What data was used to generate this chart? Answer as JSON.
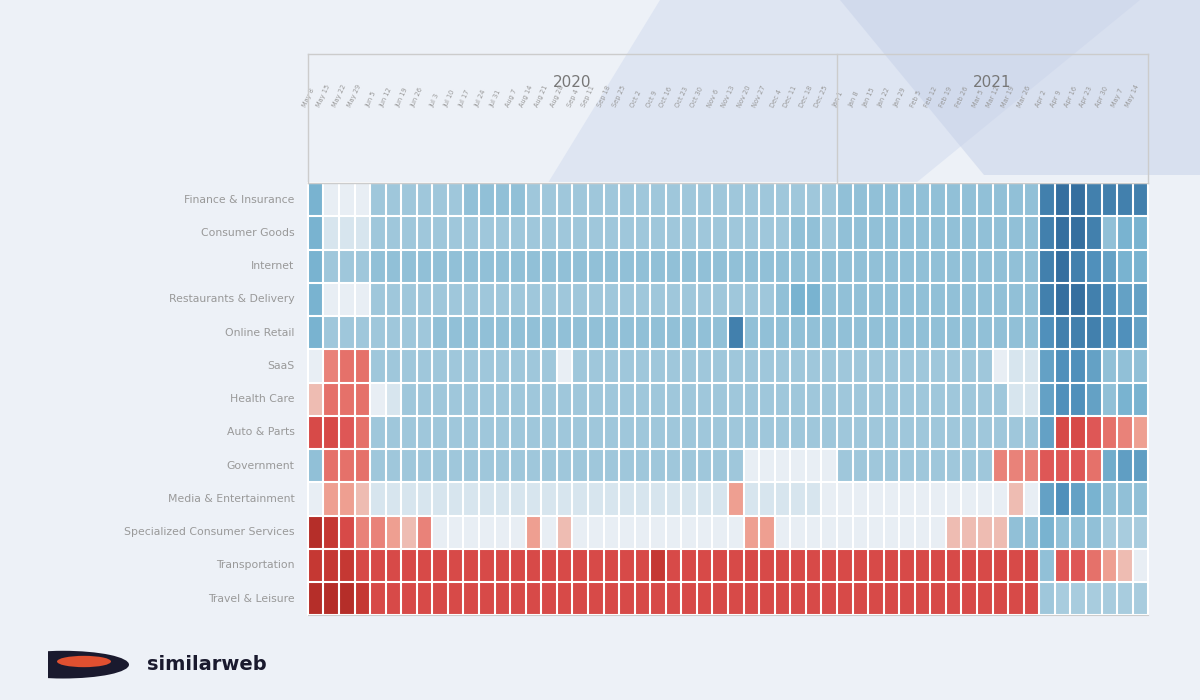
{
  "sectors": [
    "Finance & Insurance",
    "Consumer Goods",
    "Internet",
    "Restaurants & Delivery",
    "Online Retail",
    "SaaS",
    "Health Care",
    "Auto & Parts",
    "Government",
    "Media & Entertainment",
    "Specialized Consumer Services",
    "Transportation",
    "Travel & Leisure"
  ],
  "col_labels": [
    "May 8",
    "May 15",
    "May 22",
    "May 29",
    "Jun 5",
    "Jun 12",
    "Jun 19",
    "Jun 26",
    "Jul 3",
    "Jul 10",
    "Jul 17",
    "Jul 24",
    "Jul 31",
    "Aug 7",
    "Aug 14",
    "Aug 21",
    "Aug 28",
    "Sep 4",
    "Sep 11",
    "Sep 18",
    "Sep 25",
    "Oct 2",
    "Oct 9",
    "Oct 16",
    "Oct 23",
    "Oct 30",
    "Nov 6",
    "Nov 13",
    "Nov 20",
    "Nov 27",
    "Dec 4",
    "Dec 11",
    "Dec 18",
    "Dec 25",
    "Jan 1",
    "Jan 8",
    "Jan 15",
    "Jan 22",
    "Jan 29",
    "Feb 5",
    "Feb 12",
    "Feb 19",
    "Feb 26",
    "Mar 5",
    "Mar 12",
    "Mar 19",
    "Mar 26",
    "Apr 2",
    "Apr 9",
    "Apr 16",
    "Apr 23",
    "Apr 30",
    "May 7",
    "May 14"
  ],
  "year_labels": [
    "2020",
    "2021"
  ],
  "divider_col": 34,
  "heatmap_data": [
    [
      0.7,
      0.5,
      0.5,
      0.52,
      0.62,
      0.62,
      0.62,
      0.62,
      0.62,
      0.62,
      0.65,
      0.65,
      0.65,
      0.65,
      0.62,
      0.62,
      0.62,
      0.62,
      0.62,
      0.62,
      0.62,
      0.62,
      0.62,
      0.62,
      0.62,
      0.62,
      0.62,
      0.62,
      0.62,
      0.62,
      0.62,
      0.62,
      0.62,
      0.62,
      0.65,
      0.65,
      0.65,
      0.65,
      0.65,
      0.65,
      0.65,
      0.65,
      0.65,
      0.65,
      0.65,
      0.65,
      0.65,
      0.85,
      0.9,
      0.9,
      0.85,
      0.85,
      0.85,
      0.85
    ],
    [
      0.7,
      0.55,
      0.55,
      0.55,
      0.62,
      0.62,
      0.62,
      0.62,
      0.62,
      0.62,
      0.62,
      0.62,
      0.62,
      0.62,
      0.62,
      0.62,
      0.62,
      0.62,
      0.62,
      0.62,
      0.62,
      0.62,
      0.62,
      0.62,
      0.62,
      0.62,
      0.62,
      0.62,
      0.62,
      0.62,
      0.62,
      0.65,
      0.65,
      0.62,
      0.65,
      0.65,
      0.65,
      0.65,
      0.65,
      0.65,
      0.65,
      0.65,
      0.65,
      0.65,
      0.65,
      0.65,
      0.65,
      0.85,
      0.9,
      0.9,
      0.85,
      0.65,
      0.7,
      0.7
    ],
    [
      0.7,
      0.62,
      0.62,
      0.62,
      0.65,
      0.65,
      0.65,
      0.65,
      0.65,
      0.65,
      0.65,
      0.65,
      0.65,
      0.65,
      0.65,
      0.65,
      0.65,
      0.65,
      0.65,
      0.65,
      0.65,
      0.65,
      0.65,
      0.65,
      0.65,
      0.65,
      0.65,
      0.65,
      0.65,
      0.65,
      0.65,
      0.65,
      0.65,
      0.65,
      0.65,
      0.65,
      0.65,
      0.65,
      0.65,
      0.65,
      0.65,
      0.65,
      0.65,
      0.65,
      0.65,
      0.65,
      0.65,
      0.85,
      0.9,
      0.85,
      0.8,
      0.75,
      0.7,
      0.7
    ],
    [
      0.7,
      0.52,
      0.48,
      0.52,
      0.62,
      0.62,
      0.62,
      0.62,
      0.62,
      0.62,
      0.62,
      0.62,
      0.62,
      0.62,
      0.62,
      0.62,
      0.62,
      0.62,
      0.62,
      0.62,
      0.62,
      0.62,
      0.62,
      0.62,
      0.62,
      0.62,
      0.62,
      0.62,
      0.62,
      0.62,
      0.65,
      0.7,
      0.7,
      0.65,
      0.65,
      0.65,
      0.65,
      0.65,
      0.65,
      0.65,
      0.65,
      0.65,
      0.65,
      0.65,
      0.65,
      0.65,
      0.65,
      0.85,
      0.9,
      0.9,
      0.85,
      0.8,
      0.75,
      0.75
    ],
    [
      0.7,
      0.62,
      0.62,
      0.62,
      0.62,
      0.62,
      0.62,
      0.62,
      0.65,
      0.65,
      0.65,
      0.65,
      0.65,
      0.65,
      0.65,
      0.65,
      0.65,
      0.65,
      0.65,
      0.65,
      0.65,
      0.65,
      0.65,
      0.65,
      0.65,
      0.65,
      0.65,
      0.85,
      0.65,
      0.65,
      0.65,
      0.65,
      0.65,
      0.65,
      0.65,
      0.65,
      0.65,
      0.65,
      0.65,
      0.65,
      0.65,
      0.65,
      0.65,
      0.65,
      0.65,
      0.65,
      0.65,
      0.8,
      0.85,
      0.85,
      0.85,
      0.8,
      0.8,
      0.75
    ],
    [
      0.48,
      0.32,
      0.28,
      0.28,
      0.62,
      0.62,
      0.62,
      0.62,
      0.62,
      0.62,
      0.62,
      0.62,
      0.62,
      0.62,
      0.62,
      0.62,
      0.48,
      0.62,
      0.62,
      0.62,
      0.62,
      0.62,
      0.62,
      0.62,
      0.62,
      0.62,
      0.62,
      0.62,
      0.62,
      0.62,
      0.62,
      0.62,
      0.62,
      0.62,
      0.62,
      0.62,
      0.62,
      0.62,
      0.62,
      0.62,
      0.62,
      0.62,
      0.62,
      0.62,
      0.48,
      0.55,
      0.55,
      0.75,
      0.8,
      0.8,
      0.75,
      0.65,
      0.65,
      0.65
    ],
    [
      0.42,
      0.28,
      0.28,
      0.28,
      0.48,
      0.55,
      0.62,
      0.62,
      0.62,
      0.62,
      0.62,
      0.62,
      0.62,
      0.62,
      0.62,
      0.62,
      0.62,
      0.62,
      0.62,
      0.62,
      0.62,
      0.62,
      0.62,
      0.62,
      0.62,
      0.62,
      0.62,
      0.62,
      0.62,
      0.62,
      0.62,
      0.62,
      0.62,
      0.62,
      0.62,
      0.62,
      0.62,
      0.62,
      0.62,
      0.62,
      0.62,
      0.62,
      0.62,
      0.62,
      0.62,
      0.55,
      0.55,
      0.75,
      0.8,
      0.8,
      0.75,
      0.65,
      0.7,
      0.7
    ],
    [
      0.18,
      0.18,
      0.22,
      0.28,
      0.62,
      0.62,
      0.62,
      0.62,
      0.62,
      0.62,
      0.62,
      0.62,
      0.62,
      0.62,
      0.62,
      0.62,
      0.62,
      0.62,
      0.62,
      0.62,
      0.62,
      0.62,
      0.62,
      0.62,
      0.62,
      0.62,
      0.62,
      0.62,
      0.62,
      0.62,
      0.62,
      0.62,
      0.62,
      0.62,
      0.62,
      0.62,
      0.62,
      0.62,
      0.62,
      0.62,
      0.62,
      0.62,
      0.62,
      0.62,
      0.62,
      0.62,
      0.62,
      0.75,
      0.18,
      0.18,
      0.22,
      0.28,
      0.32,
      0.38
    ],
    [
      0.65,
      0.28,
      0.28,
      0.28,
      0.62,
      0.62,
      0.62,
      0.62,
      0.62,
      0.62,
      0.62,
      0.62,
      0.62,
      0.62,
      0.62,
      0.62,
      0.62,
      0.62,
      0.62,
      0.62,
      0.62,
      0.62,
      0.62,
      0.62,
      0.62,
      0.62,
      0.62,
      0.62,
      0.48,
      0.48,
      0.48,
      0.48,
      0.48,
      0.48,
      0.62,
      0.62,
      0.62,
      0.62,
      0.62,
      0.62,
      0.62,
      0.62,
      0.62,
      0.62,
      0.32,
      0.32,
      0.32,
      0.22,
      0.22,
      0.22,
      0.28,
      0.72,
      0.76,
      0.76
    ],
    [
      0.48,
      0.38,
      0.38,
      0.42,
      0.55,
      0.55,
      0.55,
      0.55,
      0.55,
      0.55,
      0.55,
      0.55,
      0.55,
      0.55,
      0.55,
      0.55,
      0.55,
      0.55,
      0.55,
      0.55,
      0.55,
      0.55,
      0.55,
      0.55,
      0.55,
      0.55,
      0.55,
      0.38,
      0.55,
      0.55,
      0.55,
      0.55,
      0.55,
      0.48,
      0.48,
      0.48,
      0.48,
      0.48,
      0.48,
      0.48,
      0.48,
      0.48,
      0.48,
      0.48,
      0.48,
      0.42,
      0.48,
      0.75,
      0.8,
      0.75,
      0.7,
      0.65,
      0.65,
      0.65
    ],
    [
      0.08,
      0.12,
      0.18,
      0.32,
      0.32,
      0.38,
      0.42,
      0.32,
      0.48,
      0.48,
      0.48,
      0.48,
      0.48,
      0.48,
      0.38,
      0.48,
      0.42,
      0.48,
      0.48,
      0.48,
      0.48,
      0.48,
      0.48,
      0.48,
      0.48,
      0.48,
      0.48,
      0.48,
      0.38,
      0.38,
      0.48,
      0.48,
      0.48,
      0.48,
      0.48,
      0.48,
      0.48,
      0.48,
      0.48,
      0.48,
      0.48,
      0.42,
      0.42,
      0.42,
      0.42,
      0.65,
      0.65,
      0.7,
      0.65,
      0.65,
      0.65,
      0.6,
      0.6,
      0.6
    ],
    [
      0.12,
      0.12,
      0.12,
      0.18,
      0.18,
      0.18,
      0.18,
      0.18,
      0.18,
      0.18,
      0.18,
      0.18,
      0.18,
      0.18,
      0.18,
      0.18,
      0.18,
      0.18,
      0.18,
      0.18,
      0.18,
      0.18,
      0.12,
      0.18,
      0.18,
      0.18,
      0.18,
      0.18,
      0.18,
      0.18,
      0.18,
      0.18,
      0.18,
      0.18,
      0.18,
      0.18,
      0.18,
      0.18,
      0.18,
      0.18,
      0.18,
      0.18,
      0.18,
      0.18,
      0.18,
      0.18,
      0.18,
      0.65,
      0.22,
      0.22,
      0.28,
      0.38,
      0.42,
      0.48
    ],
    [
      0.08,
      0.08,
      0.08,
      0.12,
      0.18,
      0.18,
      0.18,
      0.18,
      0.18,
      0.18,
      0.18,
      0.18,
      0.18,
      0.18,
      0.18,
      0.18,
      0.18,
      0.18,
      0.18,
      0.18,
      0.18,
      0.18,
      0.18,
      0.18,
      0.18,
      0.18,
      0.18,
      0.18,
      0.18,
      0.18,
      0.18,
      0.18,
      0.18,
      0.18,
      0.18,
      0.18,
      0.18,
      0.18,
      0.18,
      0.18,
      0.18,
      0.18,
      0.18,
      0.18,
      0.18,
      0.18,
      0.18,
      0.62,
      0.6,
      0.6,
      0.6,
      0.6,
      0.6,
      0.6
    ]
  ],
  "background_color": "#edf1f7",
  "card_color": "#ffffff",
  "text_color": "#999999",
  "year_label_color": "#777777"
}
